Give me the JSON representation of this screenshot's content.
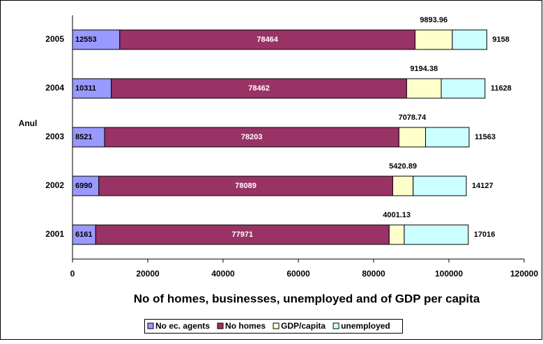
{
  "chart_data": {
    "type": "stacked-barh",
    "x_label": "No of homes, businesses, unemployed and of GDP per capita",
    "y_label": "Anul",
    "categories": [
      "2001",
      "2002",
      "2003",
      "2004",
      "2005"
    ],
    "series": [
      {
        "name": "No ec. agents",
        "color": "#9999ff",
        "values": [
          6161,
          6990,
          8521,
          10311,
          12553
        ]
      },
      {
        "name": "No homes",
        "color": "#993366",
        "values": [
          77971,
          78089,
          78203,
          78462,
          78464
        ]
      },
      {
        "name": "GDP/capita",
        "color": "#ffffcc",
        "values": [
          4001.13,
          5420.89,
          7078.74,
          9194.38,
          9893.96
        ]
      },
      {
        "name": "unemployed",
        "color": "#ccffff",
        "values": [
          17016,
          14127,
          11563,
          11628,
          9158
        ]
      }
    ],
    "xlim": [
      0,
      120000
    ],
    "xticks": [
      0,
      20000,
      40000,
      60000,
      80000,
      100000,
      120000
    ]
  }
}
